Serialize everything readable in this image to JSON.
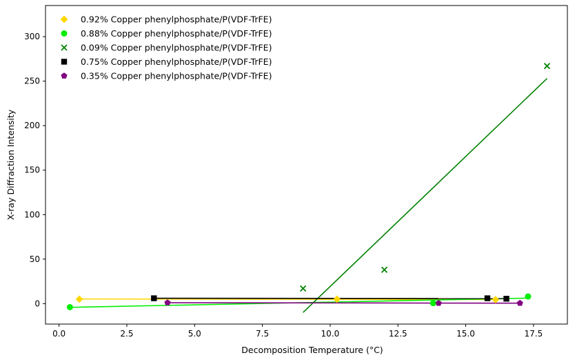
{
  "chart_data": {
    "type": "scatter",
    "title": "",
    "xlabel": "Decomposition Temperature (°C)",
    "ylabel": "X-ray Diffraction Intensity",
    "xlim": [
      -0.5,
      18.75
    ],
    "ylim": [
      -23,
      335
    ],
    "xticks": [
      0.0,
      2.5,
      5.0,
      7.5,
      10.0,
      12.5,
      15.0,
      17.5
    ],
    "xtick_labels": [
      "0.0",
      "2.5",
      "5.0",
      "7.5",
      "10.0",
      "12.5",
      "15.0",
      "17.5"
    ],
    "yticks": [
      0,
      50,
      100,
      150,
      200,
      250,
      300
    ],
    "ytick_labels": [
      "0",
      "50",
      "100",
      "150",
      "200",
      "250",
      "300"
    ],
    "grid": false,
    "legend_position": "top-left",
    "series": [
      {
        "name": "0.92% Copper phenylphosphate/P(VDF-TrFE)",
        "color": "#FFD700",
        "marker": "diamond",
        "points": [
          [
            0.75,
            5
          ],
          [
            10.25,
            5
          ],
          [
            16.1,
            4.5
          ]
        ],
        "fit": [
          [
            0.75,
            5.2
          ],
          [
            16.1,
            4.6
          ]
        ]
      },
      {
        "name": "0.88% Copper phenylphosphate/P(VDF-TrFE)",
        "color": "#00EE00",
        "marker": "circle",
        "points": [
          [
            0.4,
            -4
          ],
          [
            13.8,
            0.5
          ],
          [
            17.3,
            8
          ]
        ],
        "fit": [
          [
            0.4,
            -4.2
          ],
          [
            17.3,
            6.2
          ]
        ]
      },
      {
        "name": "0.09% Copper phenylphosphate/P(VDF-TrFE)",
        "color": "#008000",
        "marker": "x",
        "points": [
          [
            9.0,
            17
          ],
          [
            12.0,
            38
          ],
          [
            18.0,
            267
          ]
        ],
        "fit": [
          [
            9.0,
            -10
          ],
          [
            18.0,
            253
          ]
        ]
      },
      {
        "name": "0.75% Copper phenylphosphate/P(VDF-TrFE)",
        "color": "#000000",
        "marker": "square",
        "points": [
          [
            3.5,
            6
          ],
          [
            15.8,
            6
          ],
          [
            16.5,
            5.5
          ]
        ],
        "fit": [
          [
            3.5,
            6
          ],
          [
            16.5,
            5.7
          ]
        ]
      },
      {
        "name": "0.35% Copper phenylphosphate/P(VDF-TrFE)",
        "color": "#800080",
        "marker": "pentagon",
        "points": [
          [
            4.0,
            1
          ],
          [
            14.0,
            0.5
          ],
          [
            17.0,
            0.5
          ]
        ],
        "fit": [
          [
            4.0,
            1
          ],
          [
            17.0,
            0.5
          ]
        ]
      }
    ]
  }
}
